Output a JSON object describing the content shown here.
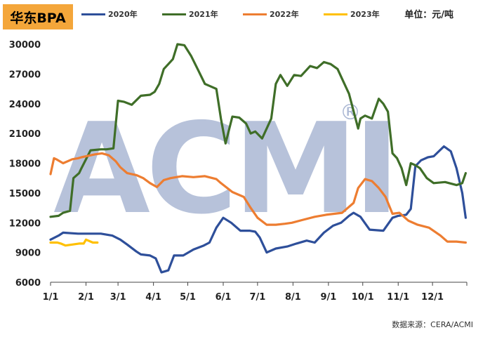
{
  "title": "华东BPA",
  "unit_label": "单位：元/吨",
  "source_label": "数据来源：CERA/ACMI",
  "watermark": {
    "text": "ACMI",
    "mark": "®"
  },
  "chart_data": {
    "type": "line",
    "title": "华东BPA",
    "ylabel": "",
    "xlabel": "",
    "ylim": [
      6000,
      30000
    ],
    "yticks": [
      6000,
      9000,
      12000,
      15000,
      18000,
      21000,
      24000,
      27000,
      30000
    ],
    "ytick_labels": [
      "6000",
      "9000",
      "12000",
      "15000",
      "18000",
      "21000",
      "24000",
      "27000",
      "30000"
    ],
    "x_unit": "day of year",
    "xlim": [
      1,
      365
    ],
    "xticks": [
      1,
      32,
      60,
      91,
      121,
      152,
      182,
      213,
      244,
      274,
      305,
      335
    ],
    "xtick_labels": [
      "1/1",
      "2/1",
      "3/1",
      "4/1",
      "5/1",
      "6/1",
      "7/1",
      "8/1",
      "9/1",
      "10/1",
      "11/1",
      "12/1"
    ],
    "grid": false,
    "legend_position": "top",
    "series": [
      {
        "name": "2020年",
        "color": "#2e4f9a",
        "x": [
          1,
          8,
          12,
          25,
          45,
          55,
          62,
          68,
          76,
          80,
          88,
          93,
          98,
          104,
          109,
          117,
          126,
          135,
          140,
          146,
          152,
          159,
          167,
          175,
          180,
          184,
          190,
          198,
          208,
          216,
          225,
          232,
          240,
          248,
          255,
          262,
          266,
          272,
          280,
          292,
          300,
          305,
          312,
          316,
          320,
          325,
          331,
          336,
          345,
          351,
          356,
          361,
          364
        ],
        "y": [
          10300,
          10700,
          11000,
          10900,
          10900,
          10700,
          10300,
          9800,
          9100,
          8800,
          8700,
          8400,
          7000,
          7200,
          8700,
          8700,
          9300,
          9700,
          10000,
          11500,
          12500,
          12000,
          11200,
          11200,
          11100,
          10500,
          9000,
          9400,
          9600,
          9900,
          10200,
          10000,
          11000,
          11700,
          12000,
          12700,
          13000,
          12600,
          11300,
          11200,
          12500,
          12700,
          12800,
          13400,
          17700,
          18300,
          18600,
          18700,
          19700,
          19200,
          17500,
          15000,
          12500
        ]
      },
      {
        "name": "2021年",
        "color": "#3f6e28",
        "x": [
          1,
          8,
          12,
          18,
          21,
          26,
          28,
          36,
          45,
          50,
          56,
          60,
          65,
          72,
          80,
          88,
          92,
          96,
          100,
          104,
          108,
          112,
          118,
          124,
          130,
          136,
          140,
          146,
          150,
          154,
          160,
          166,
          172,
          176,
          180,
          186,
          190,
          194,
          198,
          202,
          208,
          214,
          220,
          228,
          234,
          240,
          246,
          252,
          256,
          262,
          270,
          272,
          276,
          282,
          288,
          292,
          296,
          300,
          304,
          308,
          312,
          316,
          320,
          324,
          330,
          336,
          346,
          356,
          361,
          364
        ],
        "y": [
          12600,
          12700,
          13000,
          13200,
          16500,
          17000,
          17500,
          19300,
          19400,
          19400,
          19500,
          24300,
          24200,
          23900,
          24800,
          24900,
          25200,
          26000,
          27500,
          28000,
          28500,
          30000,
          29900,
          28800,
          27400,
          26000,
          25800,
          25500,
          22500,
          20000,
          22700,
          22600,
          22000,
          21000,
          21200,
          20500,
          21500,
          22500,
          26000,
          26900,
          25800,
          26900,
          26800,
          27800,
          27600,
          28200,
          28000,
          27500,
          26500,
          25000,
          21500,
          22500,
          22800,
          22500,
          24500,
          24000,
          23200,
          19000,
          18500,
          17500,
          15800,
          18000,
          17800,
          17500,
          16500,
          16000,
          16100,
          15800,
          16000,
          17000
        ]
      },
      {
        "name": "2022年",
        "color": "#ed7d31",
        "x": [
          1,
          4,
          6,
          12,
          20,
          25,
          28,
          32,
          36,
          40,
          46,
          52,
          58,
          62,
          68,
          76,
          82,
          88,
          94,
          100,
          106,
          116,
          126,
          136,
          146,
          150,
          160,
          170,
          176,
          182,
          190,
          198,
          206,
          212,
          222,
          232,
          242,
          256,
          266,
          270,
          276,
          282,
          288,
          294,
          300,
          306,
          314,
          322,
          332,
          342,
          348,
          356,
          364
        ],
        "y": [
          16900,
          18500,
          18400,
          18000,
          18400,
          18500,
          18600,
          18700,
          18800,
          18900,
          19000,
          18800,
          18200,
          17600,
          17000,
          16800,
          16500,
          16000,
          15600,
          16300,
          16500,
          16700,
          16600,
          16700,
          16400,
          16000,
          15100,
          14600,
          13500,
          12500,
          11800,
          11800,
          11900,
          12000,
          12300,
          12600,
          12800,
          13000,
          14000,
          15500,
          16400,
          16200,
          15500,
          14600,
          12900,
          13000,
          12200,
          11800,
          11500,
          10700,
          10100,
          10100,
          10000
        ]
      },
      {
        "name": "2023年",
        "color": "#ffc000",
        "x": [
          1,
          7,
          10,
          14,
          20,
          26,
          30,
          32,
          34,
          38,
          42
        ],
        "y": [
          10000,
          10000,
          9900,
          9700,
          9800,
          9900,
          9900,
          10300,
          10200,
          10000,
          10000
        ]
      }
    ]
  }
}
